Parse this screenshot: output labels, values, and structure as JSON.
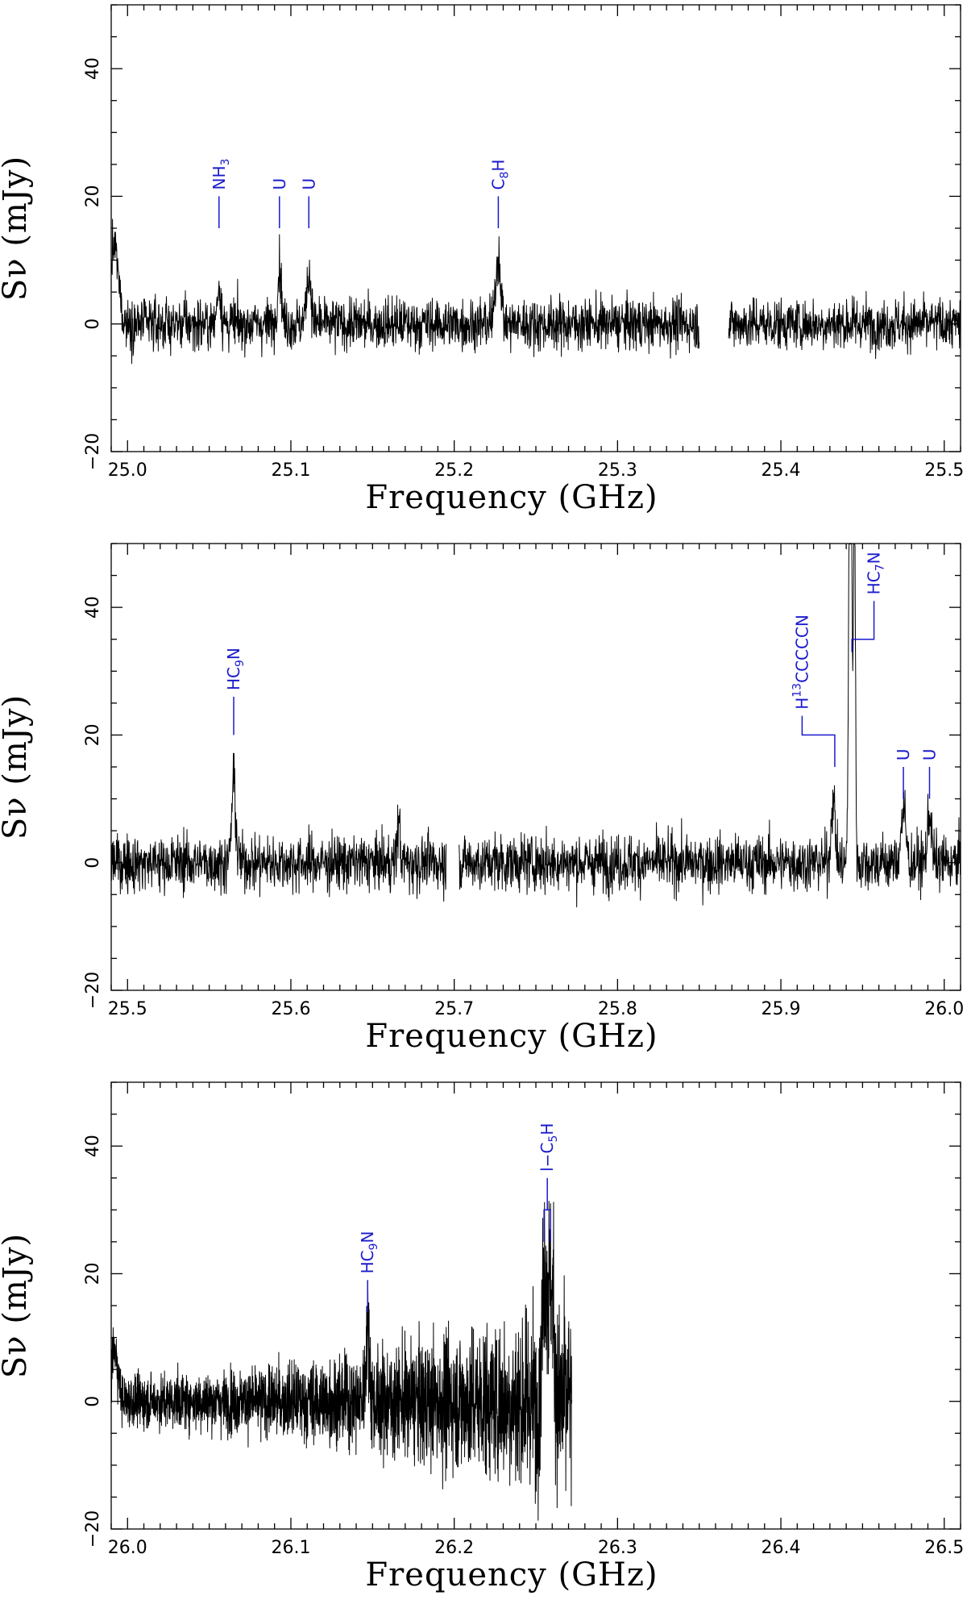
{
  "chart_data": [
    {
      "type": "line",
      "xlabel": "Frequency (GHz)",
      "ylabel": "Sν (mJy)",
      "xlim": [
        24.99,
        25.51
      ],
      "ylim": [
        -20,
        50
      ],
      "xticks": [
        "25.0",
        "25.1",
        "25.2",
        "25.3",
        "25.4",
        "25.5"
      ],
      "xtick_values": [
        25.0,
        25.1,
        25.2,
        25.3,
        25.4,
        25.5
      ],
      "yticks": [
        "−20",
        "0",
        "20",
        "40"
      ],
      "ytick_values": [
        -20,
        0,
        20,
        40
      ],
      "noise_rms_mJy": 2.0,
      "gaps": [
        [
          25.35,
          25.368
        ]
      ],
      "features": [
        {
          "freq": 24.992,
          "peak": 12,
          "width": 0.0025
        },
        {
          "freq": 25.056,
          "peak": 6,
          "width": 0.0012
        },
        {
          "freq": 25.093,
          "peak": 9,
          "width": 0.0012
        },
        {
          "freq": 25.111,
          "peak": 8,
          "width": 0.0014
        },
        {
          "freq": 25.227,
          "peak": 11,
          "width": 0.0015
        }
      ],
      "lines": [
        {
          "label": "NH",
          "sub": "3",
          "tail": "",
          "freq": 25.056,
          "y0": 15,
          "y1": 20,
          "bracket": false
        },
        {
          "label": "U",
          "sub": "",
          "tail": "",
          "freq": 25.093,
          "y0": 15,
          "y1": 20,
          "bracket": false
        },
        {
          "label": "U",
          "sub": "",
          "tail": "",
          "freq": 25.111,
          "y0": 15,
          "y1": 20,
          "bracket": false
        },
        {
          "label": "C",
          "sub": "8",
          "tail": "H",
          "freq": 25.227,
          "y0": 15,
          "y1": 20,
          "bracket": false
        }
      ]
    },
    {
      "type": "line",
      "xlabel": "Frequency (GHz)",
      "ylabel": "Sν (mJy)",
      "xlim": [
        25.49,
        26.01
      ],
      "ylim": [
        -20,
        50
      ],
      "xticks": [
        "25.5",
        "25.6",
        "25.7",
        "25.8",
        "25.9",
        "26.0"
      ],
      "xtick_values": [
        25.5,
        25.6,
        25.7,
        25.8,
        25.9,
        26.0
      ],
      "yticks": [
        "−20",
        "0",
        "20",
        "40"
      ],
      "ytick_values": [
        -20,
        0,
        20,
        40
      ],
      "noise_rms_mJy": 2.2,
      "gaps": [
        [
          25.695,
          25.703
        ]
      ],
      "features": [
        {
          "freq": 25.565,
          "peak": 13,
          "width": 0.0012
        },
        {
          "freq": 25.666,
          "peak": 7,
          "width": 0.0008
        },
        {
          "freq": 25.932,
          "peak": 10,
          "width": 0.0012
        },
        {
          "freq": 25.9425,
          "peak": 95,
          "width": 0.0008
        },
        {
          "freq": 25.945,
          "peak": 60,
          "width": 0.0006
        },
        {
          "freq": 25.975,
          "peak": 8,
          "width": 0.0015
        },
        {
          "freq": 25.991,
          "peak": 8,
          "width": 0.0012
        }
      ],
      "lines": [
        {
          "label": "HC",
          "sub": "9",
          "tail": "N",
          "freq": 25.565,
          "y0": 20,
          "y1": 26,
          "bracket": false
        },
        {
          "label": "H",
          "sup": "13",
          "tail": "CCCCCN",
          "freq": 25.913,
          "y0": 20,
          "y1": 20,
          "bracket": true,
          "bracket_to": 25.933,
          "bracket_down": 15
        },
        {
          "label": "HC",
          "sub": "7",
          "tail": "N",
          "freq": 25.957,
          "y0": 35,
          "y1": 38,
          "bracket": true,
          "bracket_to": 25.9435,
          "bracket_down": 33
        },
        {
          "label": "U",
          "sub": "",
          "tail": "",
          "freq": 25.975,
          "y0": 10,
          "y1": 15,
          "bracket": false
        },
        {
          "label": "U",
          "sub": "",
          "tail": "",
          "freq": 25.991,
          "y0": 10,
          "y1": 15,
          "bracket": false
        }
      ]
    },
    {
      "type": "line",
      "xlabel": "Frequency (GHz)",
      "ylabel": "Sν (mJy)",
      "xlim": [
        25.99,
        26.51
      ],
      "ylim": [
        -20,
        50
      ],
      "xticks": [
        "26.0",
        "26.1",
        "26.2",
        "26.3",
        "26.4",
        "26.5"
      ],
      "xtick_values": [
        26.0,
        26.1,
        26.2,
        26.3,
        26.4,
        26.5
      ],
      "yticks": [
        "−20",
        "0",
        "20",
        "40"
      ],
      "ytick_values": [
        -20,
        0,
        20,
        40
      ],
      "noise_rms_mJy": 2.0,
      "noise_growth": 3.0,
      "data_end": 26.272,
      "gaps": [],
      "features": [
        {
          "freq": 25.992,
          "peak": 8,
          "width": 0.002
        },
        {
          "freq": 26.147,
          "peak": 11,
          "width": 0.0012
        },
        {
          "freq": 26.2555,
          "peak": 21,
          "width": 0.0016
        },
        {
          "freq": 26.2595,
          "peak": 17,
          "width": 0.0016
        }
      ],
      "lines": [
        {
          "label": "HC",
          "sub": "9",
          "tail": "N",
          "freq": 26.147,
          "y0": 14,
          "y1": 19,
          "bracket": false
        },
        {
          "label": "l−C",
          "sub": "5",
          "tail": "H",
          "freq": 26.257,
          "y0": 30,
          "y1": 35,
          "bracket": false,
          "fork": [
            26.255,
            26.259,
            25
          ]
        }
      ]
    }
  ]
}
